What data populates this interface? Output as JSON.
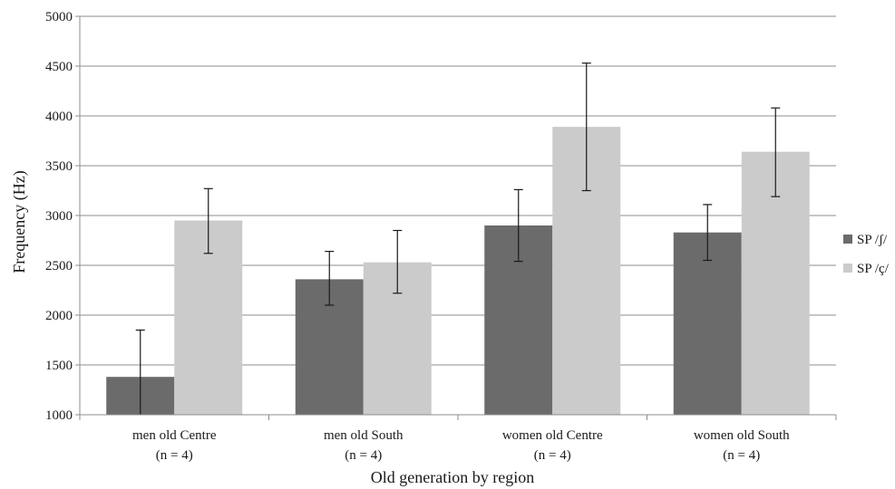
{
  "chart_data": {
    "type": "bar",
    "title": "",
    "xlabel": "Old generation by region",
    "ylabel": "Frequency (Hz)",
    "ylim": [
      1000,
      5000
    ],
    "yticks": [
      1000,
      1500,
      2000,
      2500,
      3000,
      3500,
      4000,
      4500,
      5000
    ],
    "grid": true,
    "legend_position": "right",
    "categories": [
      {
        "line1": "men old Centre",
        "line2": "(n = 4)"
      },
      {
        "line1": "men old South",
        "line2": "(n = 4)"
      },
      {
        "line1": "women old Centre",
        "line2": "(n = 4)"
      },
      {
        "line1": "women old South",
        "line2": "(n = 4)"
      }
    ],
    "series": [
      {
        "name": "SP /ʃ/",
        "color": "#6b6b6b",
        "values": [
          1380,
          2360,
          2900,
          2830
        ],
        "error_low": [
          1000,
          2100,
          2540,
          2550
        ],
        "error_high": [
          1850,
          2640,
          3260,
          3110
        ]
      },
      {
        "name": "SP /ç/",
        "color": "#cbcbcb",
        "values": [
          2950,
          2530,
          3890,
          3640
        ],
        "error_low": [
          2620,
          2220,
          3250,
          3190
        ],
        "error_high": [
          3270,
          2850,
          4530,
          4080
        ]
      }
    ]
  }
}
